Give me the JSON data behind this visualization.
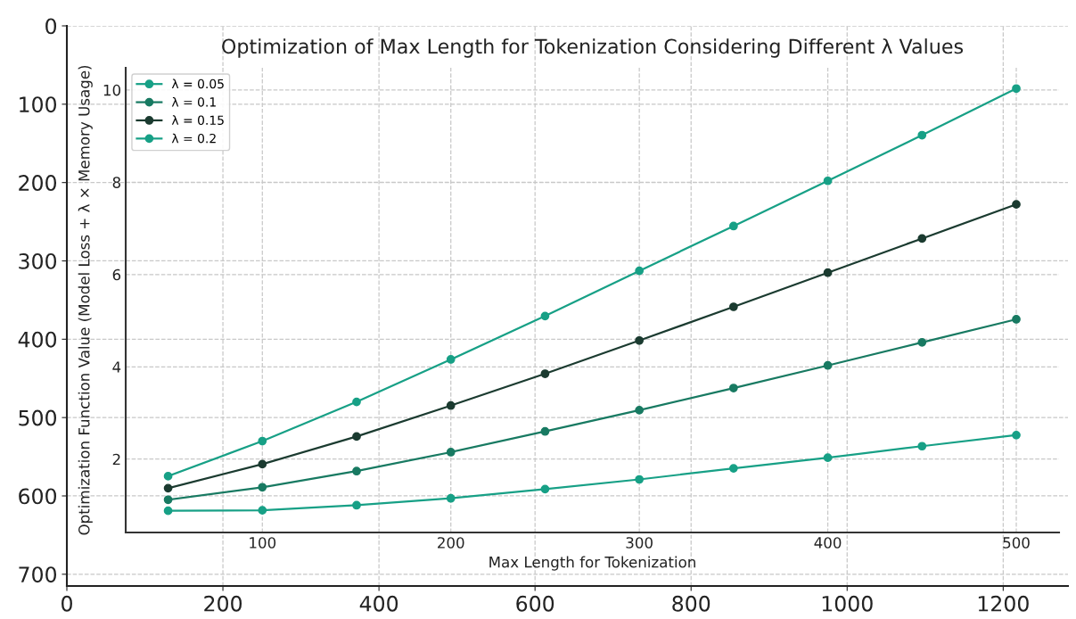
{
  "chart_data": [
    {
      "type": "line",
      "title": "Optimization of Max Length for Tokenization Considering Different λ Values",
      "xlabel": "Max Length for Tokenization",
      "ylabel": "Optimization Function Value (Model Loss + λ × Memory Usage)",
      "x": [
        50,
        100,
        150,
        200,
        250,
        300,
        350,
        400,
        450,
        500
      ],
      "series": [
        {
          "name": "λ = 0.05",
          "color": "#17a086",
          "values": [
            0.88,
            0.89,
            1.0,
            1.15,
            1.35,
            1.56,
            1.8,
            2.03,
            2.28,
            2.52
          ]
        },
        {
          "name": "λ = 0.1",
          "color": "#187a62",
          "values": [
            1.12,
            1.39,
            1.74,
            2.15,
            2.6,
            3.06,
            3.54,
            4.03,
            4.53,
            5.03
          ]
        },
        {
          "name": "λ = 0.15",
          "color": "#1b3b30",
          "values": [
            1.37,
            1.89,
            2.49,
            3.16,
            3.85,
            4.57,
            5.3,
            6.04,
            6.78,
            7.52
          ]
        },
        {
          "name": "λ = 0.2",
          "color": "#17a086",
          "values": [
            1.63,
            2.39,
            3.24,
            4.16,
            5.1,
            6.08,
            7.05,
            8.03,
            9.02,
            10.03
          ]
        }
      ],
      "xlim": [
        27.5,
        522.7
      ],
      "ylim": [
        0.41,
        10.48
      ],
      "xticks": [
        100,
        200,
        300,
        400,
        500
      ],
      "yticks": [
        2,
        4,
        6,
        8,
        10
      ],
      "grid": true,
      "legend": "top left",
      "marker": "circle",
      "line_style": "solid"
    },
    {
      "type": "line",
      "xlim": [
        0,
        1283
      ],
      "ylim": [
        715,
        0
      ],
      "xticks": [
        0,
        200,
        400,
        600,
        800,
        1000,
        1200
      ],
      "yticks": [
        0,
        100,
        200,
        300,
        400,
        500,
        600,
        700
      ],
      "grid": true
    }
  ]
}
